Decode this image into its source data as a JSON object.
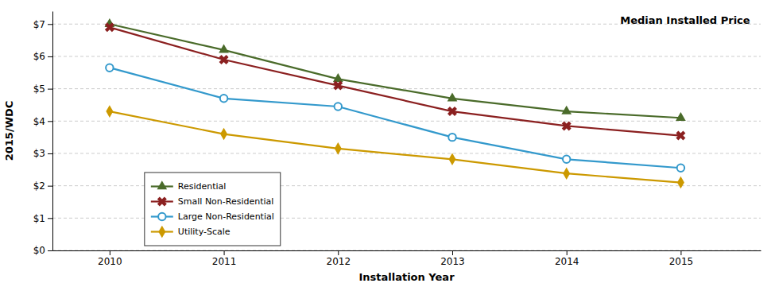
{
  "chart_data": {
    "type": "line",
    "x": [
      2010,
      2011,
      2012,
      2013,
      2014,
      2015
    ],
    "xlim": [
      2009.5,
      2015.7
    ],
    "xticks": [
      2010,
      2011,
      2012,
      2013,
      2014,
      2015
    ],
    "xlabel": "Installation Year",
    "ylabel": "2015/WDC",
    "annotation": "Median Installed Price",
    "ylim": [
      0,
      7.4
    ],
    "yticks": [
      {
        "value": 0,
        "label": "$0"
      },
      {
        "value": 1,
        "label": "$1"
      },
      {
        "value": 2,
        "label": "$2"
      },
      {
        "value": 3,
        "label": "$3"
      },
      {
        "value": 4,
        "label": "$4"
      },
      {
        "value": 5,
        "label": "$5"
      },
      {
        "value": 6,
        "label": "$6"
      },
      {
        "value": 7,
        "label": "$7"
      }
    ],
    "grid": true,
    "legend": "lower left",
    "series": [
      {
        "name": "Residential",
        "color": "#4a6b2a",
        "marker": "triangle",
        "values": [
          7.0,
          6.2,
          5.3,
          4.7,
          4.3,
          4.1
        ]
      },
      {
        "name": "Small Non-Residential",
        "color": "#8b2020",
        "marker": "x",
        "values": [
          6.9,
          5.9,
          5.1,
          4.3,
          3.85,
          3.55
        ]
      },
      {
        "name": "Large Non-Residential",
        "color": "#3399cc",
        "marker": "circle-open",
        "values": [
          5.65,
          4.7,
          4.45,
          3.5,
          2.82,
          2.55
        ]
      },
      {
        "name": "Utility-Scale",
        "color": "#cc9900",
        "marker": "diamond",
        "values": [
          4.3,
          3.6,
          3.15,
          2.82,
          2.38,
          2.1
        ]
      }
    ]
  }
}
